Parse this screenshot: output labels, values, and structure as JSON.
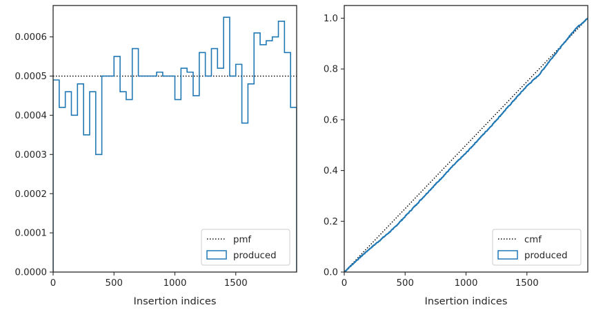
{
  "chart_data": [
    {
      "type": "histogram",
      "xlabel": "Insertion indices",
      "ylabel": "",
      "xlim": [
        0,
        2000
      ],
      "ylim": [
        0,
        0.00068
      ],
      "xticks": [
        0,
        500,
        1000,
        1500
      ],
      "xtick_labels": [
        "0",
        "500",
        "1000",
        "1500"
      ],
      "yticks": [
        0,
        0.0001,
        0.0002,
        0.0003,
        0.0004,
        0.0005,
        0.0006
      ],
      "ytick_labels": [
        "0.0000",
        "0.0001",
        "0.0002",
        "0.0003",
        "0.0004",
        "0.0005",
        "0.0006"
      ],
      "grid": false,
      "legend_position": "lower-right",
      "series": [
        {
          "name": "pmf",
          "kind": "hline",
          "style": "dotted",
          "color": "#000000",
          "y": 0.0005
        },
        {
          "name": "produced",
          "kind": "step-histogram",
          "color": "#1f77b4",
          "bin_edges": [
            0,
            50,
            100,
            150,
            200,
            250,
            300,
            350,
            400,
            450,
            500,
            550,
            600,
            650,
            700,
            750,
            800,
            850,
            900,
            950,
            1000,
            1050,
            1100,
            1150,
            1200,
            1250,
            1300,
            1350,
            1400,
            1450,
            1500,
            1550,
            1600,
            1650,
            1700,
            1750,
            1800,
            1850,
            1900,
            1950,
            2000
          ],
          "values": [
            0.00049,
            0.00042,
            0.00046,
            0.0004,
            0.00048,
            0.00035,
            0.00046,
            0.0003,
            0.0005,
            0.0005,
            0.00055,
            0.00046,
            0.00044,
            0.00057,
            0.0005,
            0.0005,
            0.0005,
            0.00051,
            0.0005,
            0.0005,
            0.00044,
            0.00052,
            0.00051,
            0.00045,
            0.00056,
            0.0005,
            0.00057,
            0.00052,
            0.00065,
            0.0005,
            0.00053,
            0.00038,
            0.00048,
            0.00061,
            0.00058,
            0.00059,
            0.0006,
            0.00064,
            0.00056,
            0.00042
          ]
        }
      ]
    },
    {
      "type": "line",
      "xlabel": "Insertion indices",
      "ylabel": "",
      "xlim": [
        0,
        2000
      ],
      "ylim": [
        0,
        1.05
      ],
      "xticks": [
        0,
        500,
        1000,
        1500
      ],
      "xtick_labels": [
        "0",
        "500",
        "1000",
        "1500"
      ],
      "yticks": [
        0,
        0.2,
        0.4,
        0.6,
        0.8,
        1.0
      ],
      "ytick_labels": [
        "0.0",
        "0.2",
        "0.4",
        "0.6",
        "0.8",
        "1.0"
      ],
      "grid": false,
      "legend_position": "lower-right",
      "series": [
        {
          "name": "cmf",
          "kind": "line",
          "style": "dotted",
          "color": "#000000",
          "x": [
            0,
            2000
          ],
          "y": [
            0,
            1.0
          ]
        },
        {
          "name": "produced",
          "kind": "cumulative-step",
          "color": "#1f77b4",
          "x": [
            0,
            100,
            200,
            300,
            400,
            500,
            600,
            700,
            800,
            900,
            1000,
            1100,
            1200,
            1300,
            1400,
            1500,
            1600,
            1700,
            1800,
            1900,
            2000
          ],
          "y": [
            0,
            0.045,
            0.088,
            0.128,
            0.169,
            0.219,
            0.27,
            0.321,
            0.371,
            0.422,
            0.469,
            0.521,
            0.572,
            0.626,
            0.68,
            0.733,
            0.777,
            0.84,
            0.899,
            0.959,
            1.0
          ]
        }
      ]
    }
  ]
}
